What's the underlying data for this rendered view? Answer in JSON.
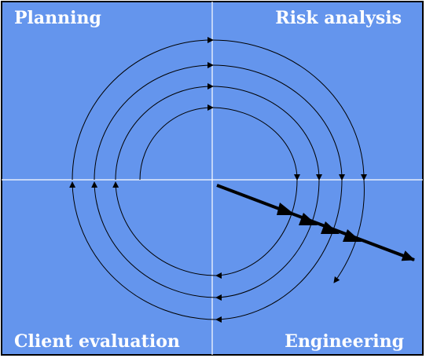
{
  "diagram": {
    "quadrants": {
      "top_left": "Planning",
      "top_right": "Risk analysis",
      "bottom_left": "Client evaluation",
      "bottom_right": "Engineering"
    },
    "colors": {
      "background": "#6495ED",
      "axis_lines": "#ffffff",
      "spiral": "#000000",
      "labels": "#ffffff",
      "border": "#000000"
    }
  }
}
